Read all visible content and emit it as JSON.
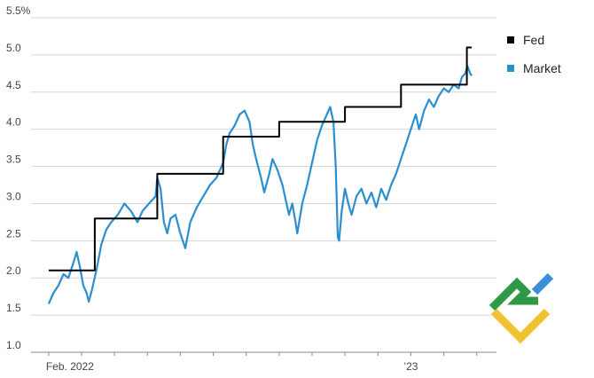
{
  "chart_data": {
    "type": "line",
    "title": "",
    "xlabel": "",
    "ylabel": "",
    "ylim": [
      1.0,
      5.5
    ],
    "y_ticks": [
      1.0,
      1.5,
      2.0,
      2.5,
      3.0,
      3.5,
      4.0,
      4.5,
      5.0,
      5.5
    ],
    "y_tick_labels": [
      "1.0",
      "1.5",
      "2.0",
      "2.5",
      "3.0",
      "3.5",
      "4.0",
      "4.5",
      "5.0",
      "5.5%"
    ],
    "x_unit": "month index (0 = Feb. 2022)",
    "xlim": [
      -0.4,
      13.6
    ],
    "x_tick_labels": [
      {
        "x": 0,
        "label": "Feb. 2022"
      },
      {
        "x": 11,
        "label": "’23"
      }
    ],
    "grid": "horizontal",
    "legend": "right",
    "series": [
      {
        "name": "Fed",
        "color": "#000000",
        "step": true,
        "points": [
          [
            0.0,
            2.1
          ],
          [
            1.4,
            2.1
          ],
          [
            1.4,
            2.8
          ],
          [
            3.3,
            2.8
          ],
          [
            3.3,
            3.4
          ],
          [
            5.3,
            3.4
          ],
          [
            5.3,
            3.9
          ],
          [
            7.0,
            3.9
          ],
          [
            7.0,
            4.1
          ],
          [
            9.0,
            4.1
          ],
          [
            9.0,
            4.3
          ],
          [
            10.7,
            4.3
          ],
          [
            10.7,
            4.6
          ],
          [
            12.7,
            4.6
          ],
          [
            12.7,
            5.1
          ],
          [
            12.85,
            5.1
          ]
        ]
      },
      {
        "name": "Market",
        "color": "#2b8fcf",
        "step": false,
        "points": [
          [
            0.0,
            1.65
          ],
          [
            0.15,
            1.8
          ],
          [
            0.3,
            1.9
          ],
          [
            0.45,
            2.05
          ],
          [
            0.6,
            2.0
          ],
          [
            0.75,
            2.2
          ],
          [
            0.85,
            2.35
          ],
          [
            0.95,
            2.15
          ],
          [
            1.05,
            1.9
          ],
          [
            1.15,
            1.8
          ],
          [
            1.22,
            1.68
          ],
          [
            1.32,
            1.85
          ],
          [
            1.45,
            2.1
          ],
          [
            1.6,
            2.45
          ],
          [
            1.75,
            2.65
          ],
          [
            1.9,
            2.75
          ],
          [
            2.1,
            2.85
          ],
          [
            2.3,
            3.0
          ],
          [
            2.5,
            2.9
          ],
          [
            2.7,
            2.75
          ],
          [
            2.85,
            2.9
          ],
          [
            3.05,
            3.0
          ],
          [
            3.25,
            3.1
          ],
          [
            3.3,
            3.35
          ],
          [
            3.4,
            3.2
          ],
          [
            3.5,
            2.75
          ],
          [
            3.6,
            2.6
          ],
          [
            3.7,
            2.8
          ],
          [
            3.85,
            2.85
          ],
          [
            4.0,
            2.6
          ],
          [
            4.15,
            2.4
          ],
          [
            4.3,
            2.75
          ],
          [
            4.5,
            2.95
          ],
          [
            4.7,
            3.1
          ],
          [
            4.9,
            3.25
          ],
          [
            5.1,
            3.35
          ],
          [
            5.3,
            3.55
          ],
          [
            5.4,
            3.8
          ],
          [
            5.5,
            3.95
          ],
          [
            5.65,
            4.05
          ],
          [
            5.8,
            4.2
          ],
          [
            5.95,
            4.25
          ],
          [
            6.1,
            4.1
          ],
          [
            6.2,
            3.8
          ],
          [
            6.3,
            3.6
          ],
          [
            6.45,
            3.35
          ],
          [
            6.55,
            3.15
          ],
          [
            6.7,
            3.4
          ],
          [
            6.8,
            3.6
          ],
          [
            6.95,
            3.45
          ],
          [
            7.1,
            3.25
          ],
          [
            7.2,
            3.05
          ],
          [
            7.3,
            2.85
          ],
          [
            7.4,
            3.0
          ],
          [
            7.5,
            2.75
          ],
          [
            7.55,
            2.6
          ],
          [
            7.7,
            3.0
          ],
          [
            7.85,
            3.25
          ],
          [
            8.0,
            3.55
          ],
          [
            8.15,
            3.85
          ],
          [
            8.3,
            4.05
          ],
          [
            8.45,
            4.2
          ],
          [
            8.55,
            4.3
          ],
          [
            8.65,
            4.1
          ],
          [
            8.72,
            3.5
          ],
          [
            8.78,
            2.55
          ],
          [
            8.82,
            2.5
          ],
          [
            8.9,
            2.9
          ],
          [
            9.0,
            3.2
          ],
          [
            9.1,
            3.0
          ],
          [
            9.2,
            2.85
          ],
          [
            9.35,
            3.1
          ],
          [
            9.5,
            3.2
          ],
          [
            9.65,
            3.0
          ],
          [
            9.8,
            3.15
          ],
          [
            9.95,
            2.95
          ],
          [
            10.1,
            3.2
          ],
          [
            10.25,
            3.05
          ],
          [
            10.4,
            3.25
          ],
          [
            10.55,
            3.4
          ],
          [
            10.7,
            3.6
          ],
          [
            10.85,
            3.8
          ],
          [
            11.0,
            4.0
          ],
          [
            11.15,
            4.2
          ],
          [
            11.25,
            4.0
          ],
          [
            11.4,
            4.25
          ],
          [
            11.55,
            4.4
          ],
          [
            11.7,
            4.3
          ],
          [
            11.85,
            4.45
          ],
          [
            12.0,
            4.55
          ],
          [
            12.15,
            4.5
          ],
          [
            12.3,
            4.6
          ],
          [
            12.45,
            4.55
          ],
          [
            12.55,
            4.7
          ],
          [
            12.65,
            4.75
          ],
          [
            12.72,
            4.85
          ],
          [
            12.8,
            4.75
          ],
          [
            12.85,
            4.72
          ]
        ]
      }
    ]
  },
  "brand": {
    "logo_colors": [
      "#2e9a48",
      "#f0c230",
      "#3a90d8"
    ],
    "logo_name": "brand-logo"
  }
}
